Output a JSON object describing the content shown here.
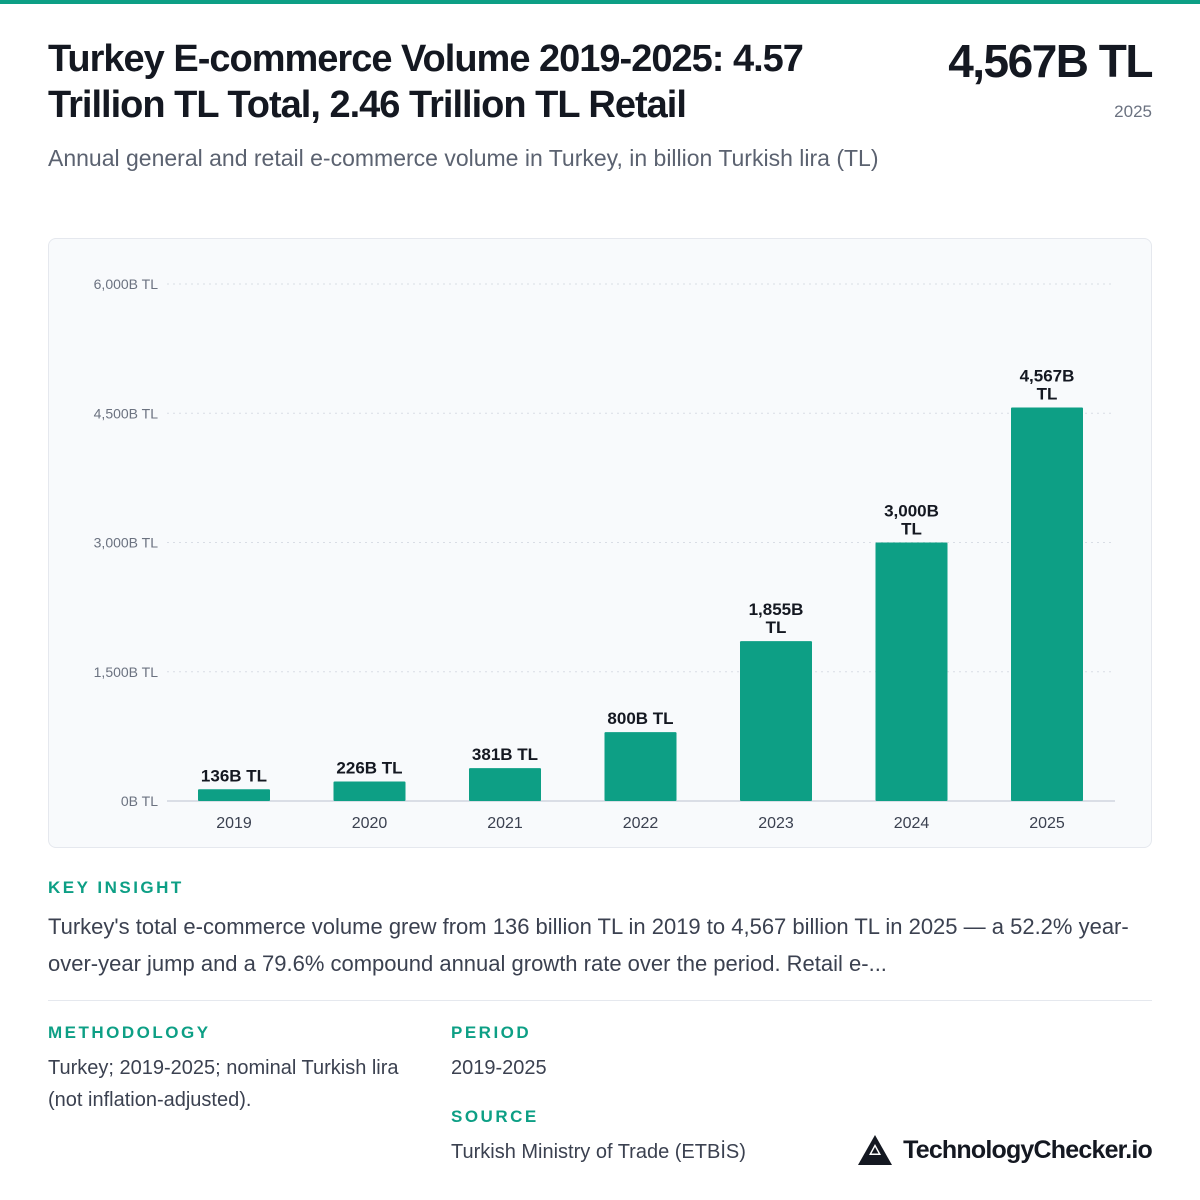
{
  "header": {
    "title": "Turkey E-commerce Volume 2019-2025: 4.57 Trillion TL Total, 2.46 Trillion TL Retail",
    "headline_value": "4,567B TL",
    "headline_year": "2025",
    "subtitle": "Annual general and retail e-commerce volume in Turkey, in billion Turkish lira (TL)"
  },
  "chart_data": {
    "type": "bar",
    "categories": [
      "2019",
      "2020",
      "2021",
      "2022",
      "2023",
      "2024",
      "2025"
    ],
    "values": [
      136,
      226,
      381,
      800,
      1855,
      3000,
      4567
    ],
    "data_labels": [
      "136B TL",
      "226B TL",
      "381B TL",
      "800B TL",
      "1,855B TL",
      "3,000B TL",
      "4,567B TL"
    ],
    "y_ticks": [
      0,
      1500,
      3000,
      4500,
      6000
    ],
    "y_tick_labels": [
      "0B TL",
      "1,500B TL",
      "3,000B TL",
      "4,500B TL",
      "6,000B TL"
    ],
    "ylim": [
      0,
      6000
    ],
    "grid": true,
    "colors": {
      "bar": "#0d9f85"
    }
  },
  "insight": {
    "label": "KEY INSIGHT",
    "text": "Turkey's total e-commerce volume grew from 136 billion TL in 2019 to 4,567 billion TL in 2025 — a 52.2% year-over-year jump and a 79.6% compound annual growth rate over the period. Retail e-..."
  },
  "meta": {
    "methodology_label": "METHODOLOGY",
    "methodology_text": "Turkey; 2019-2025; nominal Turkish lira (not inflation-adjusted).",
    "period_label": "PERIOD",
    "period_text": "2019-2025",
    "source_label": "SOURCE",
    "source_text": "Turkish Ministry of Trade (ETBİS)"
  },
  "brand": {
    "name": "TechnologyChecker.io",
    "icon": "mountain-logo-icon"
  },
  "colors": {
    "accent": "#0d9f85",
    "text": "#141821",
    "muted": "#6b7280"
  }
}
